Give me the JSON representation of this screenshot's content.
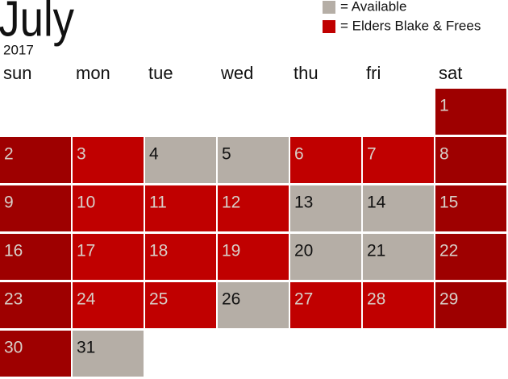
{
  "header": {
    "title": "July",
    "year": "2017"
  },
  "legend": [
    {
      "label": "= Available",
      "color": "#b5aea6"
    },
    {
      "label": "= Elders Blake & Frees",
      "color": "#c00000"
    }
  ],
  "weekdays": [
    "sun",
    "mon",
    "tue",
    "wed",
    "thu",
    "fri",
    "sat"
  ],
  "days": [
    {
      "label": "1",
      "color": "#9e0000"
    },
    {
      "label": "2",
      "color": "#9e0000"
    },
    {
      "label": "3",
      "color": "#c00000"
    },
    {
      "label": "4",
      "color": "#b5aea6"
    },
    {
      "label": "5",
      "color": "#b5aea6"
    },
    {
      "label": "6",
      "color": "#c00000"
    },
    {
      "label": "7",
      "color": "#c00000"
    },
    {
      "label": "8",
      "color": "#9e0000"
    },
    {
      "label": "9",
      "color": "#9e0000"
    },
    {
      "label": "10",
      "color": "#c00000"
    },
    {
      "label": "11",
      "color": "#c00000"
    },
    {
      "label": "12",
      "color": "#c00000"
    },
    {
      "label": "13",
      "color": "#b5aea6"
    },
    {
      "label": "14",
      "color": "#b5aea6"
    },
    {
      "label": "15",
      "color": "#9e0000"
    },
    {
      "label": "16",
      "color": "#9e0000"
    },
    {
      "label": "17",
      "color": "#c00000"
    },
    {
      "label": "18",
      "color": "#c00000"
    },
    {
      "label": "19",
      "color": "#c00000"
    },
    {
      "label": "20",
      "color": "#b5aea6"
    },
    {
      "label": "21",
      "color": "#b5aea6"
    },
    {
      "label": "22",
      "color": "#9e0000"
    },
    {
      "label": "23",
      "color": "#9e0000"
    },
    {
      "label": "24",
      "color": "#c00000"
    },
    {
      "label": "25",
      "color": "#c00000"
    },
    {
      "label": "26",
      "color": "#b5aea6"
    },
    {
      "label": "27",
      "color": "#c00000"
    },
    {
      "label": "28",
      "color": "#c00000"
    },
    {
      "label": "29",
      "color": "#9e0000"
    },
    {
      "label": "30",
      "color": "#9e0000"
    },
    {
      "label": "31",
      "color": "#b5aea6"
    }
  ]
}
